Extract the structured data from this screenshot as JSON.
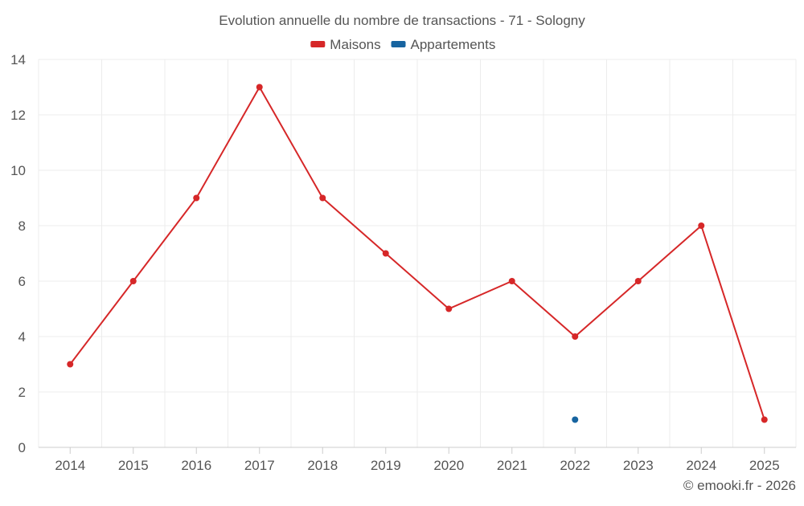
{
  "chart_data": {
    "type": "line",
    "title": "Evolution annuelle du nombre de transactions - 71 - Sologny",
    "xlabel": "",
    "ylabel": "",
    "categories": [
      "2014",
      "2015",
      "2016",
      "2017",
      "2018",
      "2019",
      "2020",
      "2021",
      "2022",
      "2023",
      "2024",
      "2025"
    ],
    "ylim": [
      0,
      14
    ],
    "yticks": [
      "0",
      "2",
      "4",
      "6",
      "8",
      "10",
      "12",
      "14"
    ],
    "grid": true,
    "legend_position": "top-center",
    "series": [
      {
        "name": "Maisons",
        "color": "#d62728",
        "values": [
          3,
          6,
          9,
          13,
          9,
          7,
          5,
          6,
          4,
          6,
          8,
          1
        ]
      },
      {
        "name": "Appartements",
        "color": "#1764a0",
        "values": [
          null,
          null,
          null,
          null,
          null,
          null,
          null,
          null,
          1,
          null,
          null,
          null
        ]
      }
    ],
    "credit": "© emooki.fr - 2026"
  },
  "colors": {
    "axis_text": "#555555",
    "title_text": "#555555",
    "grid": "#ececec",
    "axis_line": "#cccccc"
  }
}
